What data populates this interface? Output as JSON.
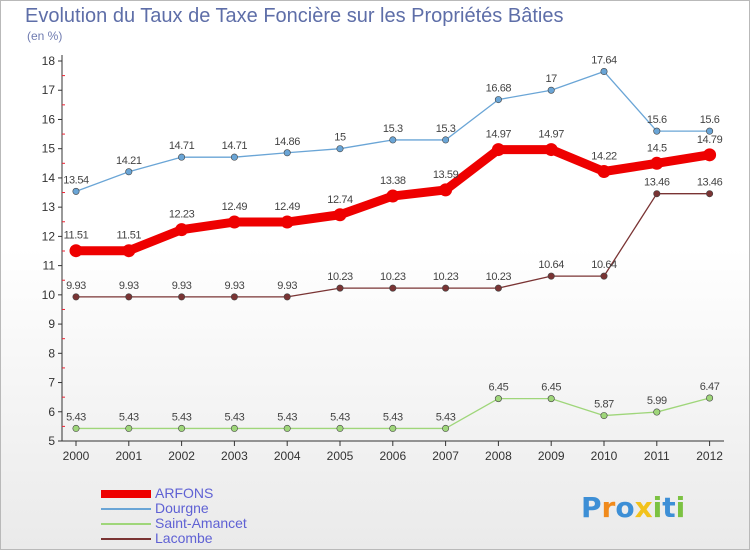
{
  "title": "Evolution du Taux de Taxe Foncière sur les Propriétés Bâties",
  "subtitle": "(en %)",
  "logo": {
    "text": "Proxiti",
    "letters": [
      {
        "char": "P",
        "color": "#3d8fd6"
      },
      {
        "char": "r",
        "color": "#f08a1c"
      },
      {
        "char": "o",
        "color": "#3d8fd6"
      },
      {
        "char": "x",
        "color": "#f2c21b"
      },
      {
        "char": "i",
        "color": "#7cc242"
      },
      {
        "char": "t",
        "color": "#3d8fd6"
      },
      {
        "char": "i",
        "color": "#7cc242"
      }
    ]
  },
  "chart_data": {
    "type": "line",
    "x": [
      "2000",
      "2001",
      "2002",
      "2003",
      "2004",
      "2005",
      "2006",
      "2007",
      "2008",
      "2009",
      "2010",
      "2011",
      "2012"
    ],
    "ylim": [
      5,
      18
    ],
    "yticks": [
      "5",
      "6",
      "7",
      "8",
      "9",
      "10",
      "11",
      "12",
      "13",
      "14",
      "15",
      "16",
      "17",
      "18"
    ],
    "grid": false,
    "legend_position": "bottom-left",
    "series": [
      {
        "name": "ARFONS",
        "color": "#ee0000",
        "values": [
          11.51,
          11.51,
          12.23,
          12.49,
          12.49,
          12.74,
          13.38,
          13.59,
          14.97,
          14.97,
          14.22,
          14.5,
          14.79
        ],
        "labels": [
          "11.51",
          "11.51",
          "12.23",
          "12.49",
          "12.49",
          "12.74",
          "13.38",
          "13.59",
          "14.97",
          "14.97",
          "14.22",
          "14.5",
          "14.79"
        ]
      },
      {
        "name": "Dourgne",
        "color": "#6aa5d6",
        "values": [
          13.54,
          14.21,
          14.71,
          14.71,
          14.86,
          15,
          15.3,
          15.3,
          16.68,
          17,
          17.64,
          15.6,
          15.6
        ],
        "labels": [
          "13.54",
          "14.21",
          "14.71",
          "14.71",
          "14.86",
          "15",
          "15.3",
          "15.3",
          "16.68",
          "17",
          "17.64",
          "15.6",
          "15.6"
        ]
      },
      {
        "name": "Saint-Amancet",
        "color": "#9fd67a",
        "values": [
          5.43,
          5.43,
          5.43,
          5.43,
          5.43,
          5.43,
          5.43,
          5.43,
          6.45,
          6.45,
          5.87,
          5.99,
          6.47
        ],
        "labels": [
          "5.43",
          "5.43",
          "5.43",
          "5.43",
          "5.43",
          "5.43",
          "5.43",
          "5.43",
          "6.45",
          "6.45",
          "5.87",
          "5.99",
          "6.47"
        ]
      },
      {
        "name": "Lacombe",
        "color": "#7a3434",
        "values": [
          9.93,
          9.93,
          9.93,
          9.93,
          9.93,
          10.23,
          10.23,
          10.23,
          10.23,
          10.64,
          10.64,
          13.46,
          13.46
        ],
        "labels": [
          "9.93",
          "9.93",
          "9.93",
          "9.93",
          "9.93",
          "10.23",
          "10.23",
          "10.23",
          "10.23",
          "10.64",
          "10.64",
          "13.46",
          "13.46"
        ]
      }
    ]
  }
}
